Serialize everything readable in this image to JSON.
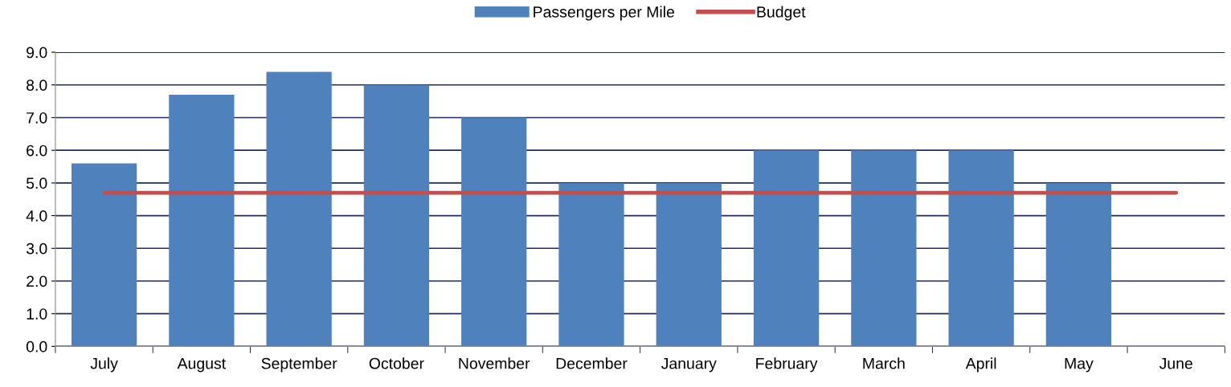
{
  "chart_data": {
    "type": "bar",
    "categories": [
      "July",
      "August",
      "September",
      "October",
      "November",
      "December",
      "January",
      "February",
      "March",
      "April",
      "May",
      "June"
    ],
    "series": [
      {
        "name": "Passengers per Mile",
        "color": "#4f81bd",
        "values": [
          5.6,
          7.7,
          8.4,
          8.0,
          7.0,
          5.0,
          5.0,
          6.0,
          6.0,
          6.0,
          5.0,
          null
        ]
      },
      {
        "name": "Budget",
        "type": "line",
        "color": "#c0504d",
        "values": [
          4.7,
          4.7,
          4.7,
          4.7,
          4.7,
          4.7,
          4.7,
          4.7,
          4.7,
          4.7,
          4.7,
          4.7
        ]
      }
    ],
    "ylim": [
      0,
      9
    ],
    "yticks": [
      {
        "value": 0,
        "label": "0.0"
      },
      {
        "value": 1,
        "label": "1.0"
      },
      {
        "value": 2,
        "label": "2.0"
      },
      {
        "value": 3,
        "label": "3.0"
      },
      {
        "value": 4,
        "label": "4.0"
      },
      {
        "value": 5,
        "label": "5.0"
      },
      {
        "value": 6,
        "label": "6.0"
      },
      {
        "value": 7,
        "label": "7.0"
      },
      {
        "value": 8,
        "label": "8.0"
      },
      {
        "value": 9,
        "label": "9.0"
      }
    ],
    "grid": "y",
    "legend": "top"
  }
}
